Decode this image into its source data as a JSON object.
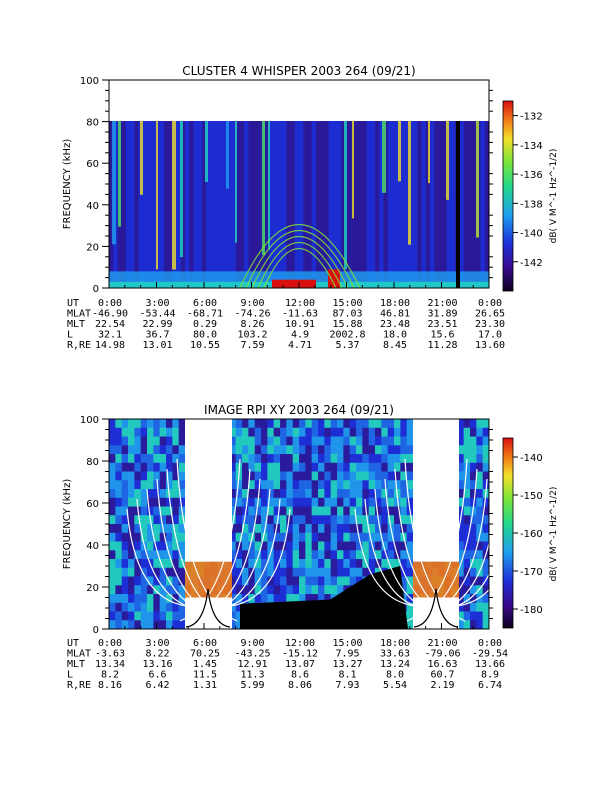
{
  "chart_data": [
    {
      "type": "heatmap",
      "title": "CLUSTER 4 WHISPER 2003 264 (09/21)",
      "ylabel": "FREQUENCY (kHz)",
      "ylim": [
        0,
        100
      ],
      "y_ticks": [
        "0",
        "20",
        "40",
        "60",
        "80",
        "100"
      ],
      "xlim": [
        0,
        24
      ],
      "x_ticks": [
        "0:00",
        "3:00",
        "6:00",
        "9:00",
        "12:00",
        "15:00",
        "18:00",
        "21:00",
        "0:00"
      ],
      "colorbar": {
        "label": "dB( V M^-1 Hz^-1/2)",
        "ticks": [
          "-132",
          "-134",
          "-136",
          "-138",
          "-140",
          "-142"
        ],
        "range": [
          -144,
          -131
        ]
      },
      "ephemeris": [
        {
          "label": "UT",
          "values": [
            "0:00",
            "3:00",
            "6:00",
            "9:00",
            "12:00",
            "15:00",
            "18:00",
            "21:00",
            "0:00"
          ]
        },
        {
          "label": "MLAT",
          "values": [
            "-46.90",
            "-53.44",
            "-68.71",
            "-74.26",
            "-11.63",
            "87.03",
            "46.81",
            "31.89",
            "26.65"
          ]
        },
        {
          "label": "MLT",
          "values": [
            "22.54",
            "22.99",
            "0.29",
            "8.26",
            "10.91",
            "15.88",
            "23.48",
            "23.51",
            "23.30"
          ]
        },
        {
          "label": "L",
          "values": [
            "32.1",
            "36.7",
            "80.0",
            "103.2",
            "4.9",
            "2002.8",
            "18.0",
            "15.6",
            "17.0"
          ]
        },
        {
          "label": "R,RE",
          "values": [
            "14.98",
            "13.01",
            "10.55",
            "7.59",
            "4.71",
            "5.37",
            "8.45",
            "11.28",
            "13.60"
          ]
        }
      ]
    },
    {
      "type": "heatmap",
      "title": "IMAGE RPI XY 2003 264 (09/21)",
      "ylabel": "FREQUENCY (kHz)",
      "ylim": [
        0,
        100
      ],
      "y_ticks": [
        "0",
        "20",
        "40",
        "60",
        "80",
        "100"
      ],
      "xlim": [
        0,
        24
      ],
      "x_ticks": [
        "0:00",
        "3:00",
        "6:00",
        "9:00",
        "12:00",
        "15:00",
        "18:00",
        "21:00",
        "0:00"
      ],
      "colorbar": {
        "label": "dB( V M^-1 Hz^-1/2)",
        "ticks": [
          "-140",
          "-150",
          "-160",
          "-170",
          "-180"
        ],
        "range": [
          -185,
          -135
        ]
      },
      "ephemeris": [
        {
          "label": "UT",
          "values": [
            "0:00",
            "3:00",
            "6:00",
            "9:00",
            "12:00",
            "15:00",
            "18:00",
            "21:00",
            "0:00"
          ]
        },
        {
          "label": "MLAT",
          "values": [
            "-3.63",
            "8.22",
            "70.25",
            "-43.25",
            "-15.12",
            "7.95",
            "33.63",
            "-79.06",
            "-29.54"
          ]
        },
        {
          "label": "MLT",
          "values": [
            "13.34",
            "13.16",
            "1.45",
            "12.91",
            "13.07",
            "13.27",
            "13.24",
            "16.63",
            "13.66"
          ]
        },
        {
          "label": "L",
          "values": [
            "8.2",
            "6.6",
            "11.5",
            "11.3",
            "8.6",
            "8.1",
            "8.0",
            "60.7",
            "8.9"
          ]
        },
        {
          "label": "R,RE",
          "values": [
            "8.16",
            "6.42",
            "1.31",
            "5.99",
            "8.06",
            "7.93",
            "5.54",
            "2.19",
            "6.74"
          ]
        }
      ]
    }
  ]
}
